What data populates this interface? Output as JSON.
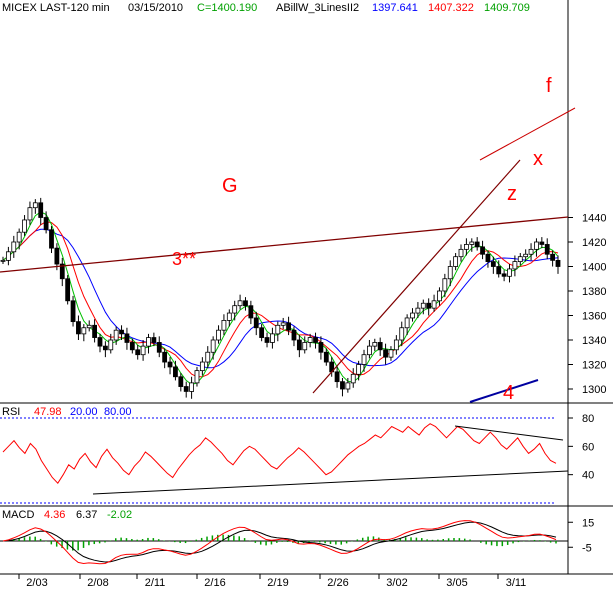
{
  "header": {
    "symbol": "MICEX LAST-120 min",
    "date": "03/15/2010",
    "close_label": "C=1400.190",
    "indicator_name": "ABillW_3LinesII2",
    "ma_values": [
      "1397.641",
      "1407.322",
      "1409.709"
    ]
  },
  "rsi": {
    "label": "RSI",
    "value": "47.98",
    "levels_text": [
      "20.00",
      "80.00"
    ]
  },
  "macd": {
    "label": "MACD",
    "values": [
      "4.36",
      "6.37",
      "-2.02"
    ]
  },
  "annotations": {
    "g": "G",
    "three": "3**",
    "four": "4",
    "f": "f",
    "z": "z",
    "x": "x"
  },
  "colors": {
    "candle": "#000000",
    "ma_slow": "#0000ff",
    "ma_mid": "#ff0000",
    "ma_fast": "#00c000",
    "trendline": "#800000",
    "rsi_line": "#ff0000",
    "dotted_levels": "#0000ff",
    "annotation_text": "#ff0000"
  },
  "chart_data": [
    {
      "type": "candlestick",
      "title": "MICEX LAST-120 min",
      "x_tick_labels": [
        "2/03",
        "2/08",
        "2/11",
        "2/16",
        "2/19",
        "2/26",
        "3/02",
        "3/05",
        "3/11"
      ],
      "y_tick_labels": [
        "1300",
        "1320",
        "1340",
        "1360",
        "1380",
        "1400",
        "1420",
        "1440"
      ],
      "ylim": [
        1290,
        1458
      ],
      "close_series_approx": [
        1405,
        1412,
        1420,
        1428,
        1438,
        1448,
        1452,
        1440,
        1430,
        1415,
        1402,
        1390,
        1372,
        1355,
        1345,
        1350,
        1352,
        1342,
        1335,
        1332,
        1340,
        1348,
        1345,
        1338,
        1332,
        1328,
        1335,
        1342,
        1338,
        1330,
        1322,
        1318,
        1310,
        1302,
        1298,
        1305,
        1315,
        1322,
        1330,
        1340,
        1348,
        1356,
        1362,
        1368,
        1372,
        1368,
        1358,
        1350,
        1342,
        1338,
        1345,
        1352,
        1354,
        1348,
        1340,
        1332,
        1338,
        1342,
        1338,
        1330,
        1322,
        1314,
        1306,
        1300,
        1305,
        1312,
        1320,
        1328,
        1335,
        1338,
        1332,
        1326,
        1332,
        1340,
        1350,
        1358,
        1362,
        1366,
        1370,
        1366,
        1372,
        1380,
        1390,
        1400,
        1408,
        1414,
        1418,
        1420,
        1416,
        1410,
        1404,
        1400,
        1394,
        1392,
        1398,
        1404,
        1408,
        1410,
        1414,
        1420,
        1418,
        1410,
        1405,
        1400
      ],
      "ma_lines": [
        {
          "name": "1397.641",
          "color": "#0000ff"
        },
        {
          "name": "1407.322",
          "color": "#ff0000"
        },
        {
          "name": "1409.709",
          "color": "#00c000"
        }
      ]
    },
    {
      "type": "line",
      "title": "RSI",
      "y_tick_labels": [
        "40",
        "60",
        "80"
      ],
      "levels": [
        20,
        80
      ],
      "last_value": 47.98,
      "values_approx": [
        56,
        60,
        64,
        59,
        55,
        62,
        58,
        50,
        44,
        38,
        34,
        40,
        47,
        44,
        51,
        55,
        49,
        45,
        53,
        58,
        52,
        48,
        43,
        40,
        46,
        50,
        56,
        53,
        49,
        45,
        41,
        38,
        44,
        49,
        54,
        58,
        61,
        66,
        63,
        59,
        55,
        50,
        47,
        52,
        57,
        60,
        58,
        54,
        50,
        46,
        44,
        48,
        52,
        55,
        59,
        56,
        52,
        48,
        44,
        40,
        42,
        46,
        50,
        54,
        57,
        60,
        62,
        65,
        68,
        66,
        70,
        74,
        72,
        70,
        74,
        71,
        68,
        73,
        76,
        74,
        70,
        66,
        70,
        74,
        72,
        68,
        64,
        62,
        66,
        70,
        66,
        61,
        58,
        62,
        66,
        60,
        55,
        58,
        62,
        55,
        50,
        48
      ]
    },
    {
      "type": "line",
      "title": "MACD",
      "y_tick_labels": [
        "-5",
        "15"
      ],
      "last_values": [
        4.36,
        6.37,
        -2.02
      ]
    }
  ]
}
